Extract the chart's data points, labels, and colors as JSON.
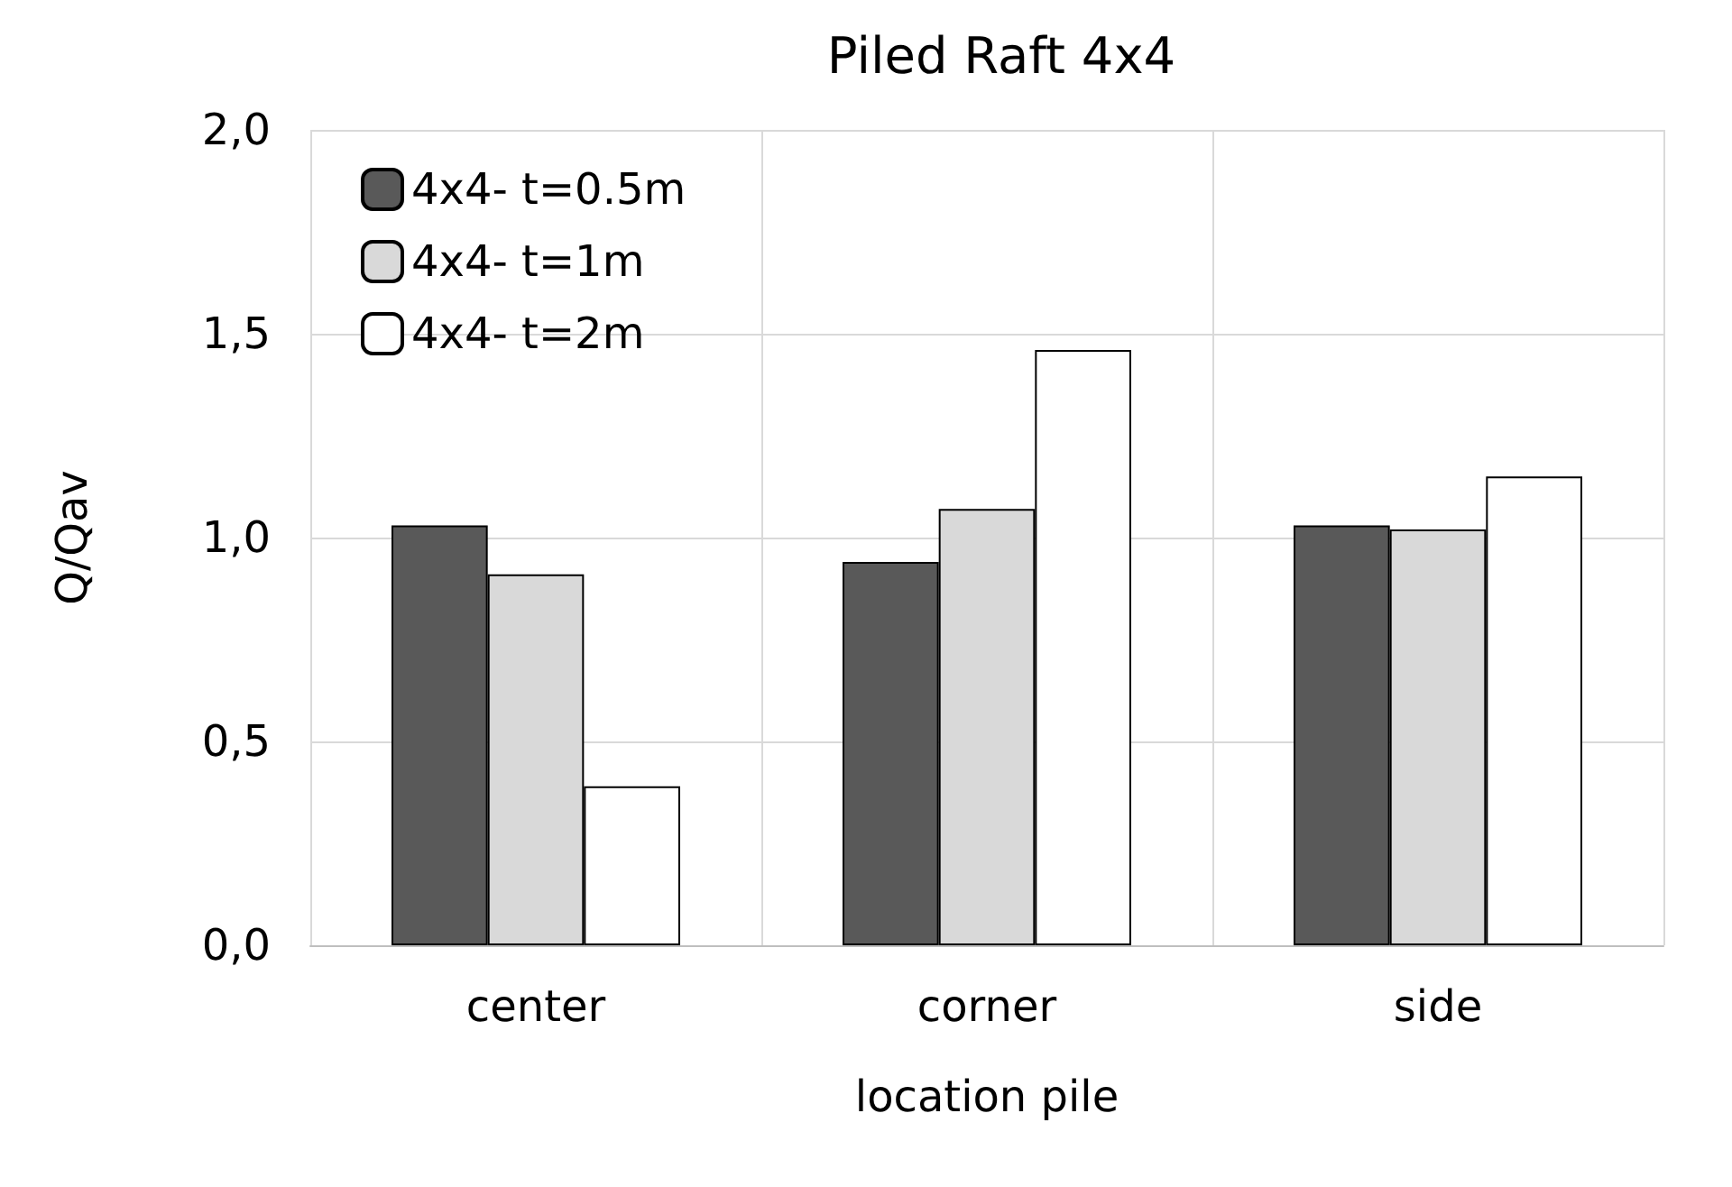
{
  "chart_data": {
    "type": "bar",
    "title": "Piled Raft 4x4",
    "xlabel": "location pile",
    "ylabel": "Q/Qav",
    "categories": [
      "center",
      "corner",
      "side"
    ],
    "series": [
      {
        "name": "4x4- t=0.5m",
        "color": "#595959",
        "values": [
          1.03,
          0.94,
          1.03
        ]
      },
      {
        "name": "4x4- t=1m",
        "color": "#d9d9d9",
        "values": [
          0.91,
          1.07,
          1.02
        ]
      },
      {
        "name": "4x4- t=2m",
        "color": "#ffffff",
        "values": [
          0.39,
          1.46,
          1.15
        ]
      }
    ],
    "ylim": [
      0,
      2
    ],
    "yticks": [
      {
        "value": 0,
        "label": "0,0"
      },
      {
        "value": 0.5,
        "label": "0,5"
      },
      {
        "value": 1,
        "label": "1,0"
      },
      {
        "value": 1.5,
        "label": "1,5"
      },
      {
        "value": 2,
        "label": "2,0"
      }
    ],
    "grid": true,
    "legend": "top left"
  }
}
